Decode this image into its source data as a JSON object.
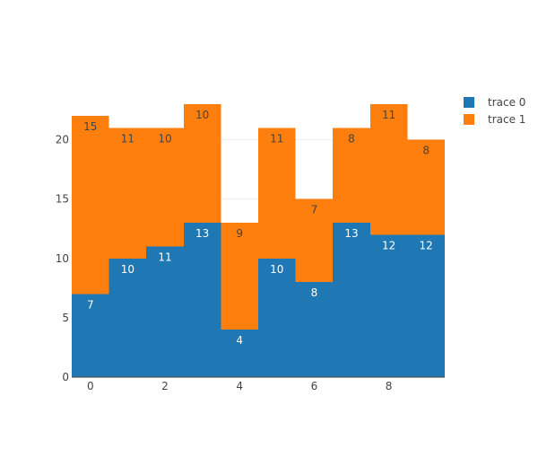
{
  "chart_data": {
    "type": "bar",
    "barmode": "stack",
    "categories": [
      0,
      1,
      2,
      3,
      4,
      5,
      6,
      7,
      8,
      9
    ],
    "x_ticks": [
      0,
      2,
      4,
      6,
      8
    ],
    "y_ticks": [
      0,
      5,
      10,
      15,
      20
    ],
    "xlim": [
      -0.5,
      9.5
    ],
    "ylim": [
      0,
      24.2
    ],
    "grid": true,
    "legend_position": "top-right",
    "series": [
      {
        "name": "trace 0",
        "color": "#1f77b4",
        "label_color": "#ffffff",
        "values": [
          7,
          10,
          11,
          13,
          4,
          10,
          8,
          13,
          12,
          12
        ]
      },
      {
        "name": "trace 1",
        "color": "#ff7f0e",
        "label_color": "#444444",
        "values": [
          15,
          11,
          10,
          10,
          9,
          11,
          7,
          8,
          11,
          8
        ]
      }
    ]
  }
}
